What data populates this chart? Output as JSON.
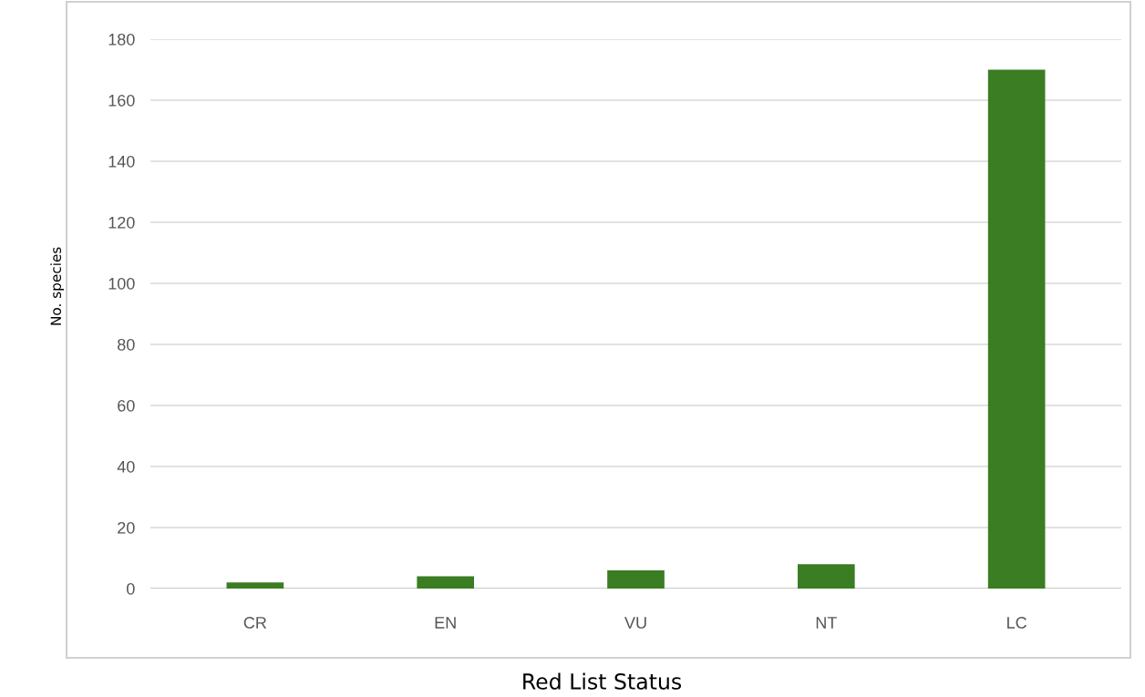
{
  "chart_data": {
    "type": "bar",
    "xlabel": "Red List Status",
    "ylabel": "No. species",
    "categories": [
      "CR",
      "EN",
      "VU",
      "NT",
      "LC"
    ],
    "values": [
      2,
      4,
      6,
      8,
      170
    ],
    "color": "#3a7d22",
    "ylim": [
      0,
      180
    ],
    "yticks": [
      0,
      20,
      40,
      60,
      80,
      100,
      120,
      140,
      160,
      180
    ],
    "grid": "y",
    "legend": false
  }
}
